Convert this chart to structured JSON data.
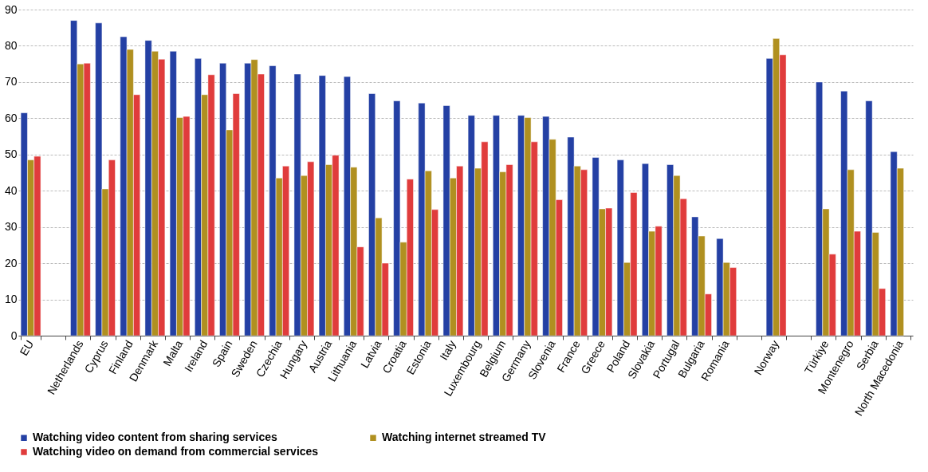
{
  "chart_data": {
    "type": "bar",
    "categories": [
      "EU",
      null,
      "Netherlands",
      "Cyprus",
      "Finland",
      "Denmark",
      "Malta",
      "Ireland",
      "Spain",
      "Sweden",
      "Czechia",
      "Hungary",
      "Austria",
      "Lithuania",
      "Latvia",
      "Croatia",
      "Estonia",
      "Italy",
      "Luxembourg",
      "Belgium",
      "Germany",
      "Slovenia",
      "France",
      "Greece",
      "Poland",
      "Slovakia",
      "Portugal",
      "Bulgaria",
      "Romania",
      null,
      "Norway",
      null,
      "Türkiye",
      "Montenegro",
      "Serbia",
      "North Macedonia"
    ],
    "series": [
      {
        "name": "Watching video content from sharing services",
        "color": "#2440a4",
        "values": [
          61.5,
          null,
          87,
          86.3,
          82.5,
          81.5,
          78.5,
          76.5,
          75.2,
          75.2,
          74.5,
          72.2,
          71.8,
          71.5,
          66.8,
          64.8,
          64.2,
          63.5,
          60.8,
          60.8,
          60.8,
          60.5,
          54.8,
          49.2,
          48.5,
          47.5,
          47.2,
          32.8,
          26.8,
          null,
          76.5,
          null,
          70,
          67.5,
          64.8,
          50.8
        ]
      },
      {
        "name": "Watching internet streamed TV",
        "color": "#b09020",
        "values": [
          48.5,
          null,
          75,
          40.5,
          79,
          78.5,
          60.2,
          66.5,
          56.8,
          76.2,
          43.5,
          44.2,
          47.2,
          46.5,
          32.5,
          25.8,
          45.5,
          43.5,
          46.2,
          45.2,
          60.2,
          54.2,
          46.8,
          35,
          20.2,
          28.8,
          44.2,
          27.5,
          20.2,
          null,
          82,
          null,
          35,
          45.8,
          28.5,
          46.2
        ]
      },
      {
        "name": "Watching video on demand from commercial services",
        "color": "#e03c3c",
        "values": [
          49.5,
          null,
          75.2,
          48.5,
          66.5,
          76.3,
          60.5,
          72,
          66.8,
          72.2,
          46.8,
          48,
          49.8,
          24.5,
          20,
          43.2,
          34.8,
          46.8,
          53.5,
          47.2,
          53.5,
          37.5,
          45.8,
          35.2,
          39.5,
          30.2,
          37.8,
          11.5,
          18.8,
          null,
          77.5,
          null,
          22.5,
          28.8,
          13,
          null
        ]
      }
    ],
    "ylim": [
      0,
      90
    ],
    "yticks": [
      0,
      10,
      20,
      30,
      40,
      50,
      60,
      70,
      80,
      90
    ],
    "grid": "y",
    "legend": "bottom"
  }
}
